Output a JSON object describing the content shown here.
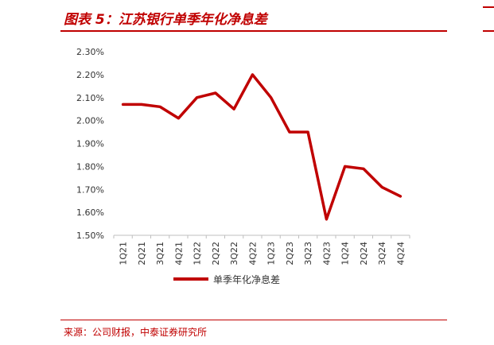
{
  "header": {
    "title": "图表 5：江苏银行单季年化净息差",
    "accent_color": "#c00000"
  },
  "footer": {
    "source": "来源：公司财报，中泰证券研究所"
  },
  "chart_data": {
    "type": "line",
    "title": "图表 5：江苏银行单季年化净息差",
    "xlabel": "",
    "ylabel": "",
    "categories": [
      "1Q21",
      "2Q21",
      "3Q21",
      "4Q21",
      "1Q22",
      "2Q22",
      "3Q22",
      "4Q22",
      "1Q23",
      "2Q23",
      "3Q23",
      "4Q23",
      "1Q24",
      "2Q24",
      "3Q24",
      "4Q24"
    ],
    "series": [
      {
        "name": "单季年化净息差",
        "color": "#c00000",
        "values": [
          2.07,
          2.07,
          2.06,
          2.01,
          2.1,
          2.12,
          2.05,
          2.2,
          2.1,
          1.95,
          1.95,
          1.57,
          1.8,
          1.79,
          1.71,
          1.67
        ]
      }
    ],
    "ylim": [
      1.5,
      2.3
    ],
    "yticks": [
      1.5,
      1.6,
      1.7,
      1.8,
      1.9,
      2.0,
      2.1,
      2.2,
      2.3
    ],
    "ytick_labels": [
      "1.50%",
      "1.60%",
      "1.70%",
      "1.80%",
      "1.90%",
      "2.00%",
      "2.10%",
      "2.20%",
      "2.30%"
    ],
    "grid": false,
    "legend_position": "bottom"
  }
}
